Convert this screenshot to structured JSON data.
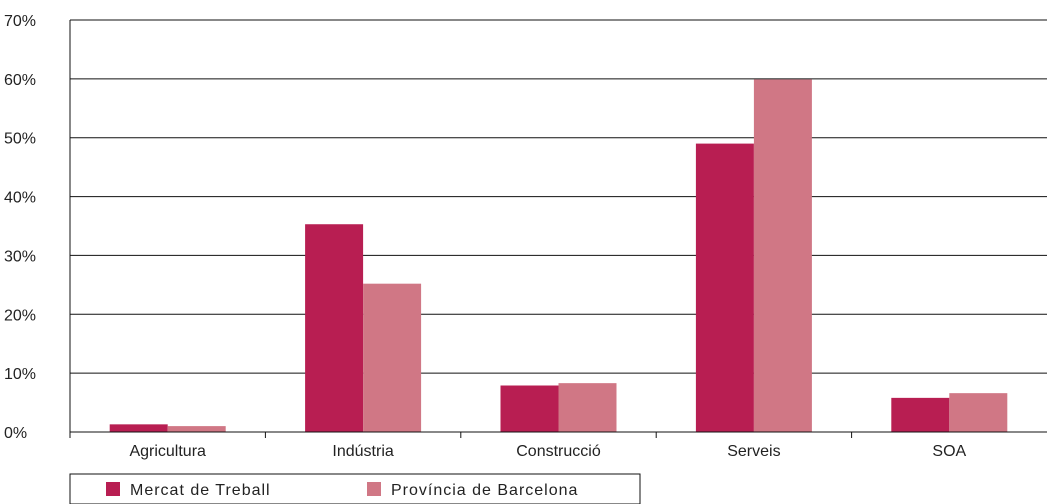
{
  "chart_data": {
    "type": "bar",
    "categories": [
      "Agricultura",
      "Indústria",
      "Construcció",
      "Serveis",
      "SOA"
    ],
    "series": [
      {
        "name": "Mercat de Treball",
        "values": [
          1.3,
          35.3,
          7.9,
          49.0,
          5.8
        ],
        "color": "#b81e52"
      },
      {
        "name": "Província de Barcelona",
        "values": [
          1.0,
          25.2,
          8.3,
          59.9,
          6.6
        ],
        "color": "#d07785"
      }
    ],
    "y_ticks": [
      "0%",
      "10%",
      "20%",
      "30%",
      "40%",
      "50%",
      "60%",
      "70%"
    ],
    "ylim": [
      0,
      70
    ],
    "ytick_step": 10,
    "grid": true,
    "legend": "bottom-left",
    "title": "",
    "xlabel": "",
    "ylabel": ""
  }
}
